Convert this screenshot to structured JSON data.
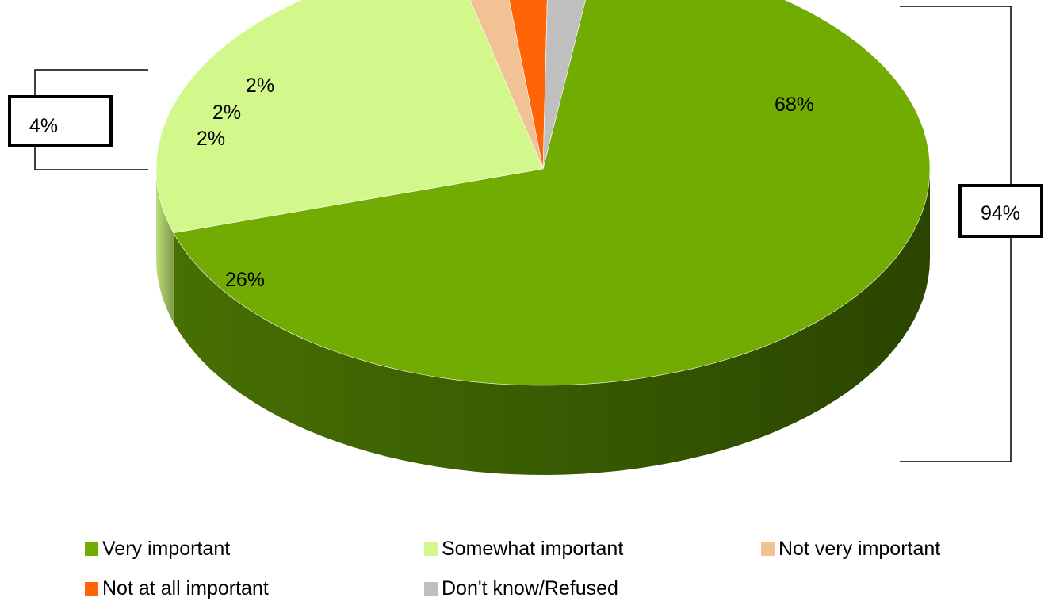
{
  "chart_data": {
    "type": "pie",
    "title": "",
    "categories": [
      "Very important",
      "Somewhat important",
      "Not very important",
      "Not at all important",
      "Don't know/Refused"
    ],
    "values": [
      68,
      26,
      2,
      2,
      2
    ],
    "value_labels": [
      "68%",
      "26%",
      "2%",
      "2%",
      "2%"
    ],
    "colors": [
      "#72AC02",
      "#D2F78A",
      "#F1C293",
      "#FF6407",
      "#BFBFBF"
    ],
    "legend_placement": "bottom",
    "three_d": true,
    "groups": [
      {
        "label": "94%",
        "members": [
          "Very important",
          "Somewhat important"
        ],
        "placement": "right"
      },
      {
        "label": "4%",
        "members": [
          "Not very important",
          "Not at all important"
        ],
        "placement": "left"
      }
    ]
  }
}
